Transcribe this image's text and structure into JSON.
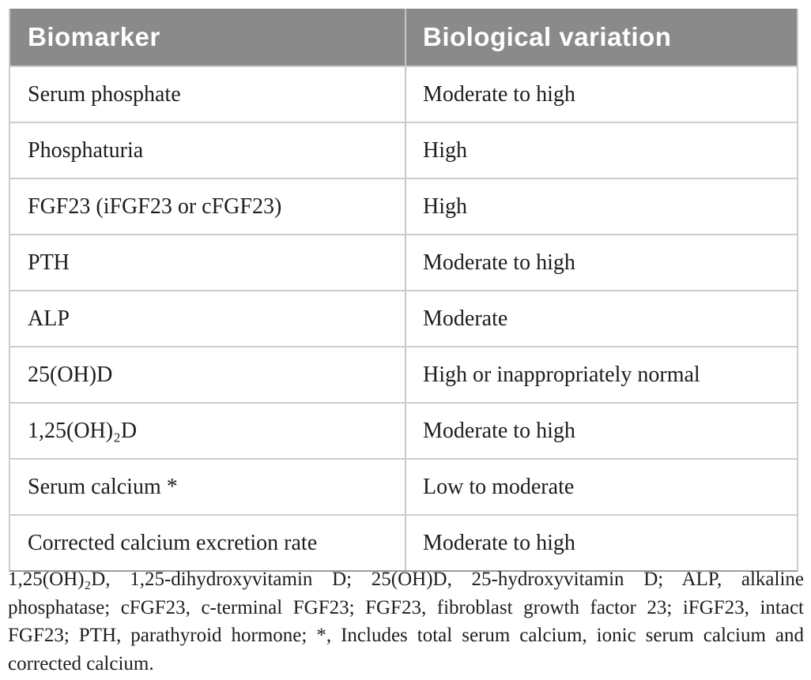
{
  "table": {
    "header": {
      "col1": "Biomarker",
      "col2": "Biological variation"
    },
    "rows": [
      {
        "biomarker": "Serum phosphate",
        "variation": "Moderate to high"
      },
      {
        "biomarker": "Phosphaturia",
        "variation": "High"
      },
      {
        "biomarker": "FGF23 (iFGF23 or cFGF23)",
        "variation": "High"
      },
      {
        "biomarker": "PTH",
        "variation": "Moderate to high"
      },
      {
        "biomarker": "ALP",
        "variation": "Moderate"
      },
      {
        "biomarker": "25(OH)D",
        "variation": "High or inappropriately normal"
      },
      {
        "biomarker": "1,25(OH)₂D",
        "variation": "Moderate to high"
      },
      {
        "biomarker": "Serum calcium *",
        "variation": "Low to moderate"
      },
      {
        "biomarker": "Corrected calcium excretion rate",
        "variation": "Moderate to high"
      }
    ]
  },
  "footnote": {
    "text": "1,25(OH)₂D, 1,25-dihydroxyvitamin D; 25(OH)D, 25-hydroxyvitamin D; ALP, alkaline phosphatase; cFGF23, c-terminal FGF23; FGF23, fibroblast growth factor 23; iFGF23, intact FGF23; PTH, parathyroid hormone; *, Includes total serum calcium, ionic serum calcium and corrected calcium."
  },
  "colors": {
    "header_background": "#8a8a8a",
    "header_text": "#ffffff",
    "body_text": "#1d1d1d",
    "grid_line": "#cdcdcd",
    "bottom_border": "#9c9c9c"
  }
}
